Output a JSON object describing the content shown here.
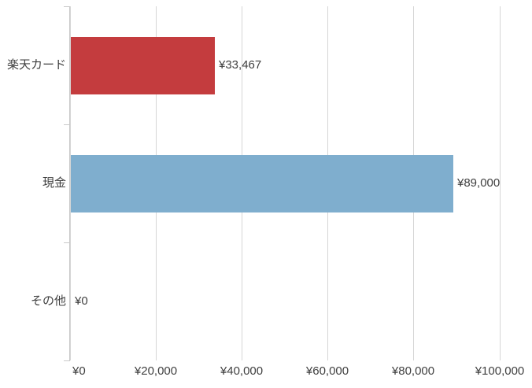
{
  "chart_data": {
    "type": "bar",
    "orientation": "horizontal",
    "title": "",
    "xlabel": "",
    "ylabel": "",
    "categories": [
      "楽天カード",
      "現金",
      "その他"
    ],
    "values": [
      33467,
      89000,
      0
    ],
    "value_labels": [
      "¥33,467",
      "¥89,000",
      "¥0"
    ],
    "bar_colors": [
      "#c43c3e",
      "#7faece",
      null
    ],
    "xlim": [
      0,
      100000
    ],
    "x_ticks": [
      0,
      20000,
      40000,
      60000,
      80000,
      100000
    ],
    "x_tick_labels": [
      "¥0",
      "¥20,000",
      "¥40,000",
      "¥60,000",
      "¥80,000",
      "¥100,000"
    ],
    "grid": "vertical",
    "legend_position": "none"
  },
  "colors": {
    "background": "#ffffff",
    "gridline": "#d6d6d6",
    "axis": "#c9c9c9",
    "text": "#3f3f3f",
    "bar_red": "#c43c3e",
    "bar_blue": "#7faece"
  }
}
